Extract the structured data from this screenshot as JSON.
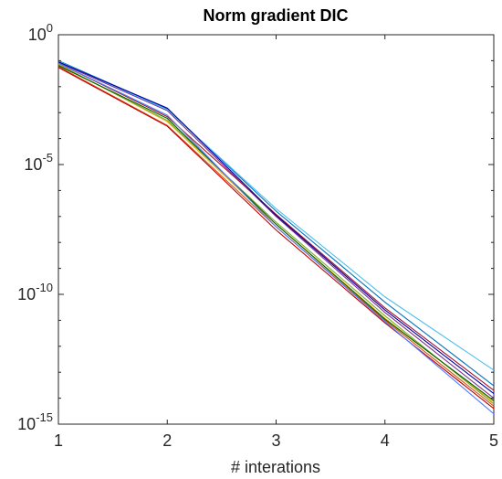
{
  "chart_data": {
    "type": "line",
    "title": "Norm gradient DIC",
    "xlabel": "# interations",
    "ylabel": "",
    "x": [
      1,
      2,
      3,
      4,
      5
    ],
    "xlim": [
      1,
      5
    ],
    "xticks": [
      1,
      2,
      3,
      4,
      5
    ],
    "ylim": [
      1e-15,
      1
    ],
    "yscale": "log",
    "yticks": [
      {
        "base": "10",
        "exp": "0",
        "value": 1
      },
      {
        "base": "10",
        "exp": "-5",
        "value": 1e-05
      },
      {
        "base": "10",
        "exp": "-10",
        "value": 1e-10
      },
      {
        "base": "10",
        "exp": "-15",
        "value": 1e-15
      }
    ],
    "grid": false,
    "box": true,
    "series": [
      {
        "color": "#0072BD",
        "values": [
          0.1,
          0.0014,
          1.6e-07,
          5e-11,
          3e-14
        ]
      },
      {
        "color": "#D95319",
        "values": [
          0.06,
          0.00032,
          4e-08,
          1e-11,
          5e-15
        ]
      },
      {
        "color": "#EDB120",
        "values": [
          0.075,
          0.00045,
          5e-08,
          1.2e-11,
          7e-15
        ]
      },
      {
        "color": "#7E2F8E",
        "values": [
          0.085,
          0.0012,
          1e-07,
          2e-11,
          1e-14
        ]
      },
      {
        "color": "#77AC30",
        "values": [
          0.07,
          0.0005,
          6e-08,
          1.5e-11,
          6e-15
        ]
      },
      {
        "color": "#4DBEEE",
        "values": [
          0.095,
          0.0013,
          2e-07,
          8e-11,
          1.2e-13
        ]
      },
      {
        "color": "#A2142F",
        "values": [
          0.08,
          0.0007,
          1.2e-07,
          3e-11,
          2e-14
        ]
      },
      {
        "color": "#0000A0",
        "values": [
          0.09,
          0.0015,
          1.1e-07,
          2.5e-11,
          1.5e-14
        ]
      },
      {
        "color": "#C00000",
        "values": [
          0.055,
          0.0003,
          3e-08,
          8e-12,
          4e-15
        ]
      },
      {
        "color": "#006000",
        "values": [
          0.065,
          0.0006,
          5e-08,
          1.1e-11,
          8e-15
        ]
      },
      {
        "color": "#5080FF",
        "values": [
          0.08,
          0.0008,
          4e-08,
          9e-12,
          2.5e-15
        ]
      }
    ]
  }
}
